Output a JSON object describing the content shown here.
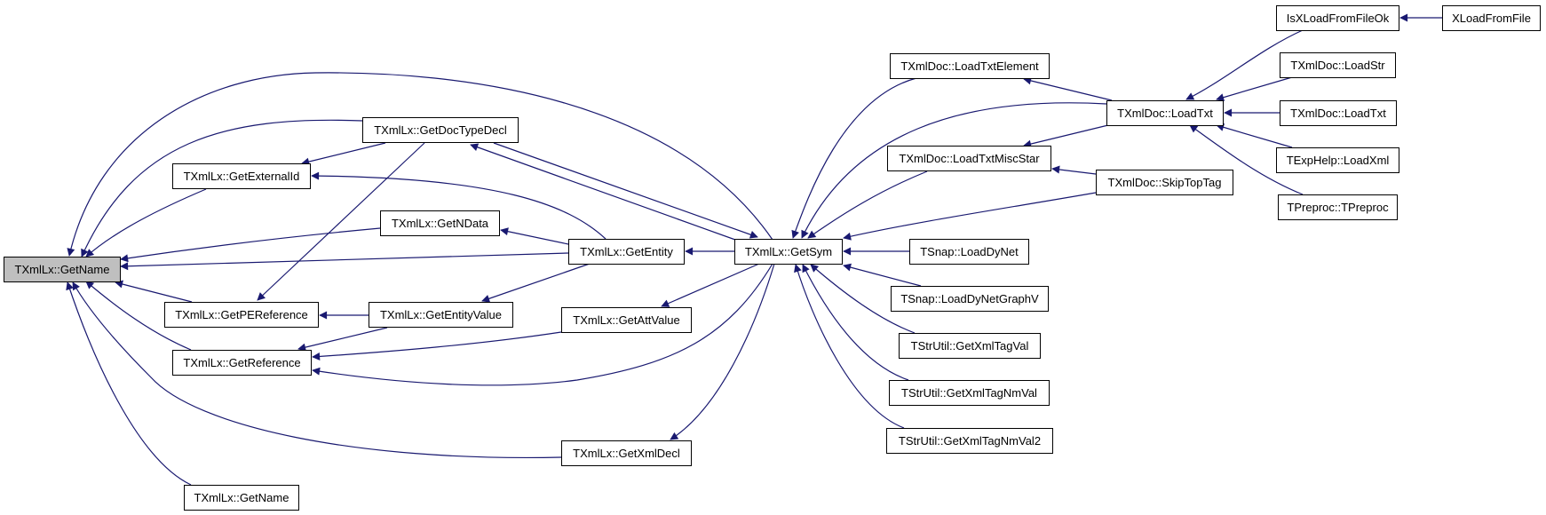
{
  "graph": {
    "edge_color": "#191970",
    "focus_fill": "#bfbfbf",
    "nodes": {
      "getname": "TXmlLx::GetName",
      "getdoctypedecl": "TXmlLx::GetDocTypeDecl",
      "getexternalid": "TXmlLx::GetExternalId",
      "getndata": "TXmlLx::GetNData",
      "getentity": "TXmlLx::GetEntity",
      "getsym": "TXmlLx::GetSym",
      "getpereference": "TXmlLx::GetPEReference",
      "getentityvalue": "TXmlLx::GetEntityValue",
      "getattvalue": "TXmlLx::GetAttValue",
      "getreference": "TXmlLx::GetReference",
      "getxmldecl": "TXmlLx::GetXmlDecl",
      "getname2": "TXmlLx::GetName",
      "loadtxtelement": "TXmlDoc::LoadTxtElement",
      "loadtxt": "TXmlDoc::LoadTxt",
      "loadtxtmiscstar": "TXmlDoc::LoadTxtMiscStar",
      "skiptoptag": "TXmlDoc::SkipTopTag",
      "loaddynet": "TSnap::LoadDyNet",
      "loaddynetgraphv": "TSnap::LoadDyNetGraphV",
      "getxmltagval": "TStrUtil::GetXmlTagVal",
      "getxmltagnmval": "TStrUtil::GetXmlTagNmVal",
      "getxmltagnmval2": "TStrUtil::GetXmlTagNmVal2",
      "isxloadfromfileok": "IsXLoadFromFileOk",
      "xloadfromfile": "XLoadFromFile",
      "loadstr": "TXmlDoc::LoadStr",
      "loadtxt2": "TXmlDoc::LoadTxt",
      "loadxml": "TExpHelp::LoadXml",
      "tpreproc": "TPreproc::TPreproc"
    }
  }
}
